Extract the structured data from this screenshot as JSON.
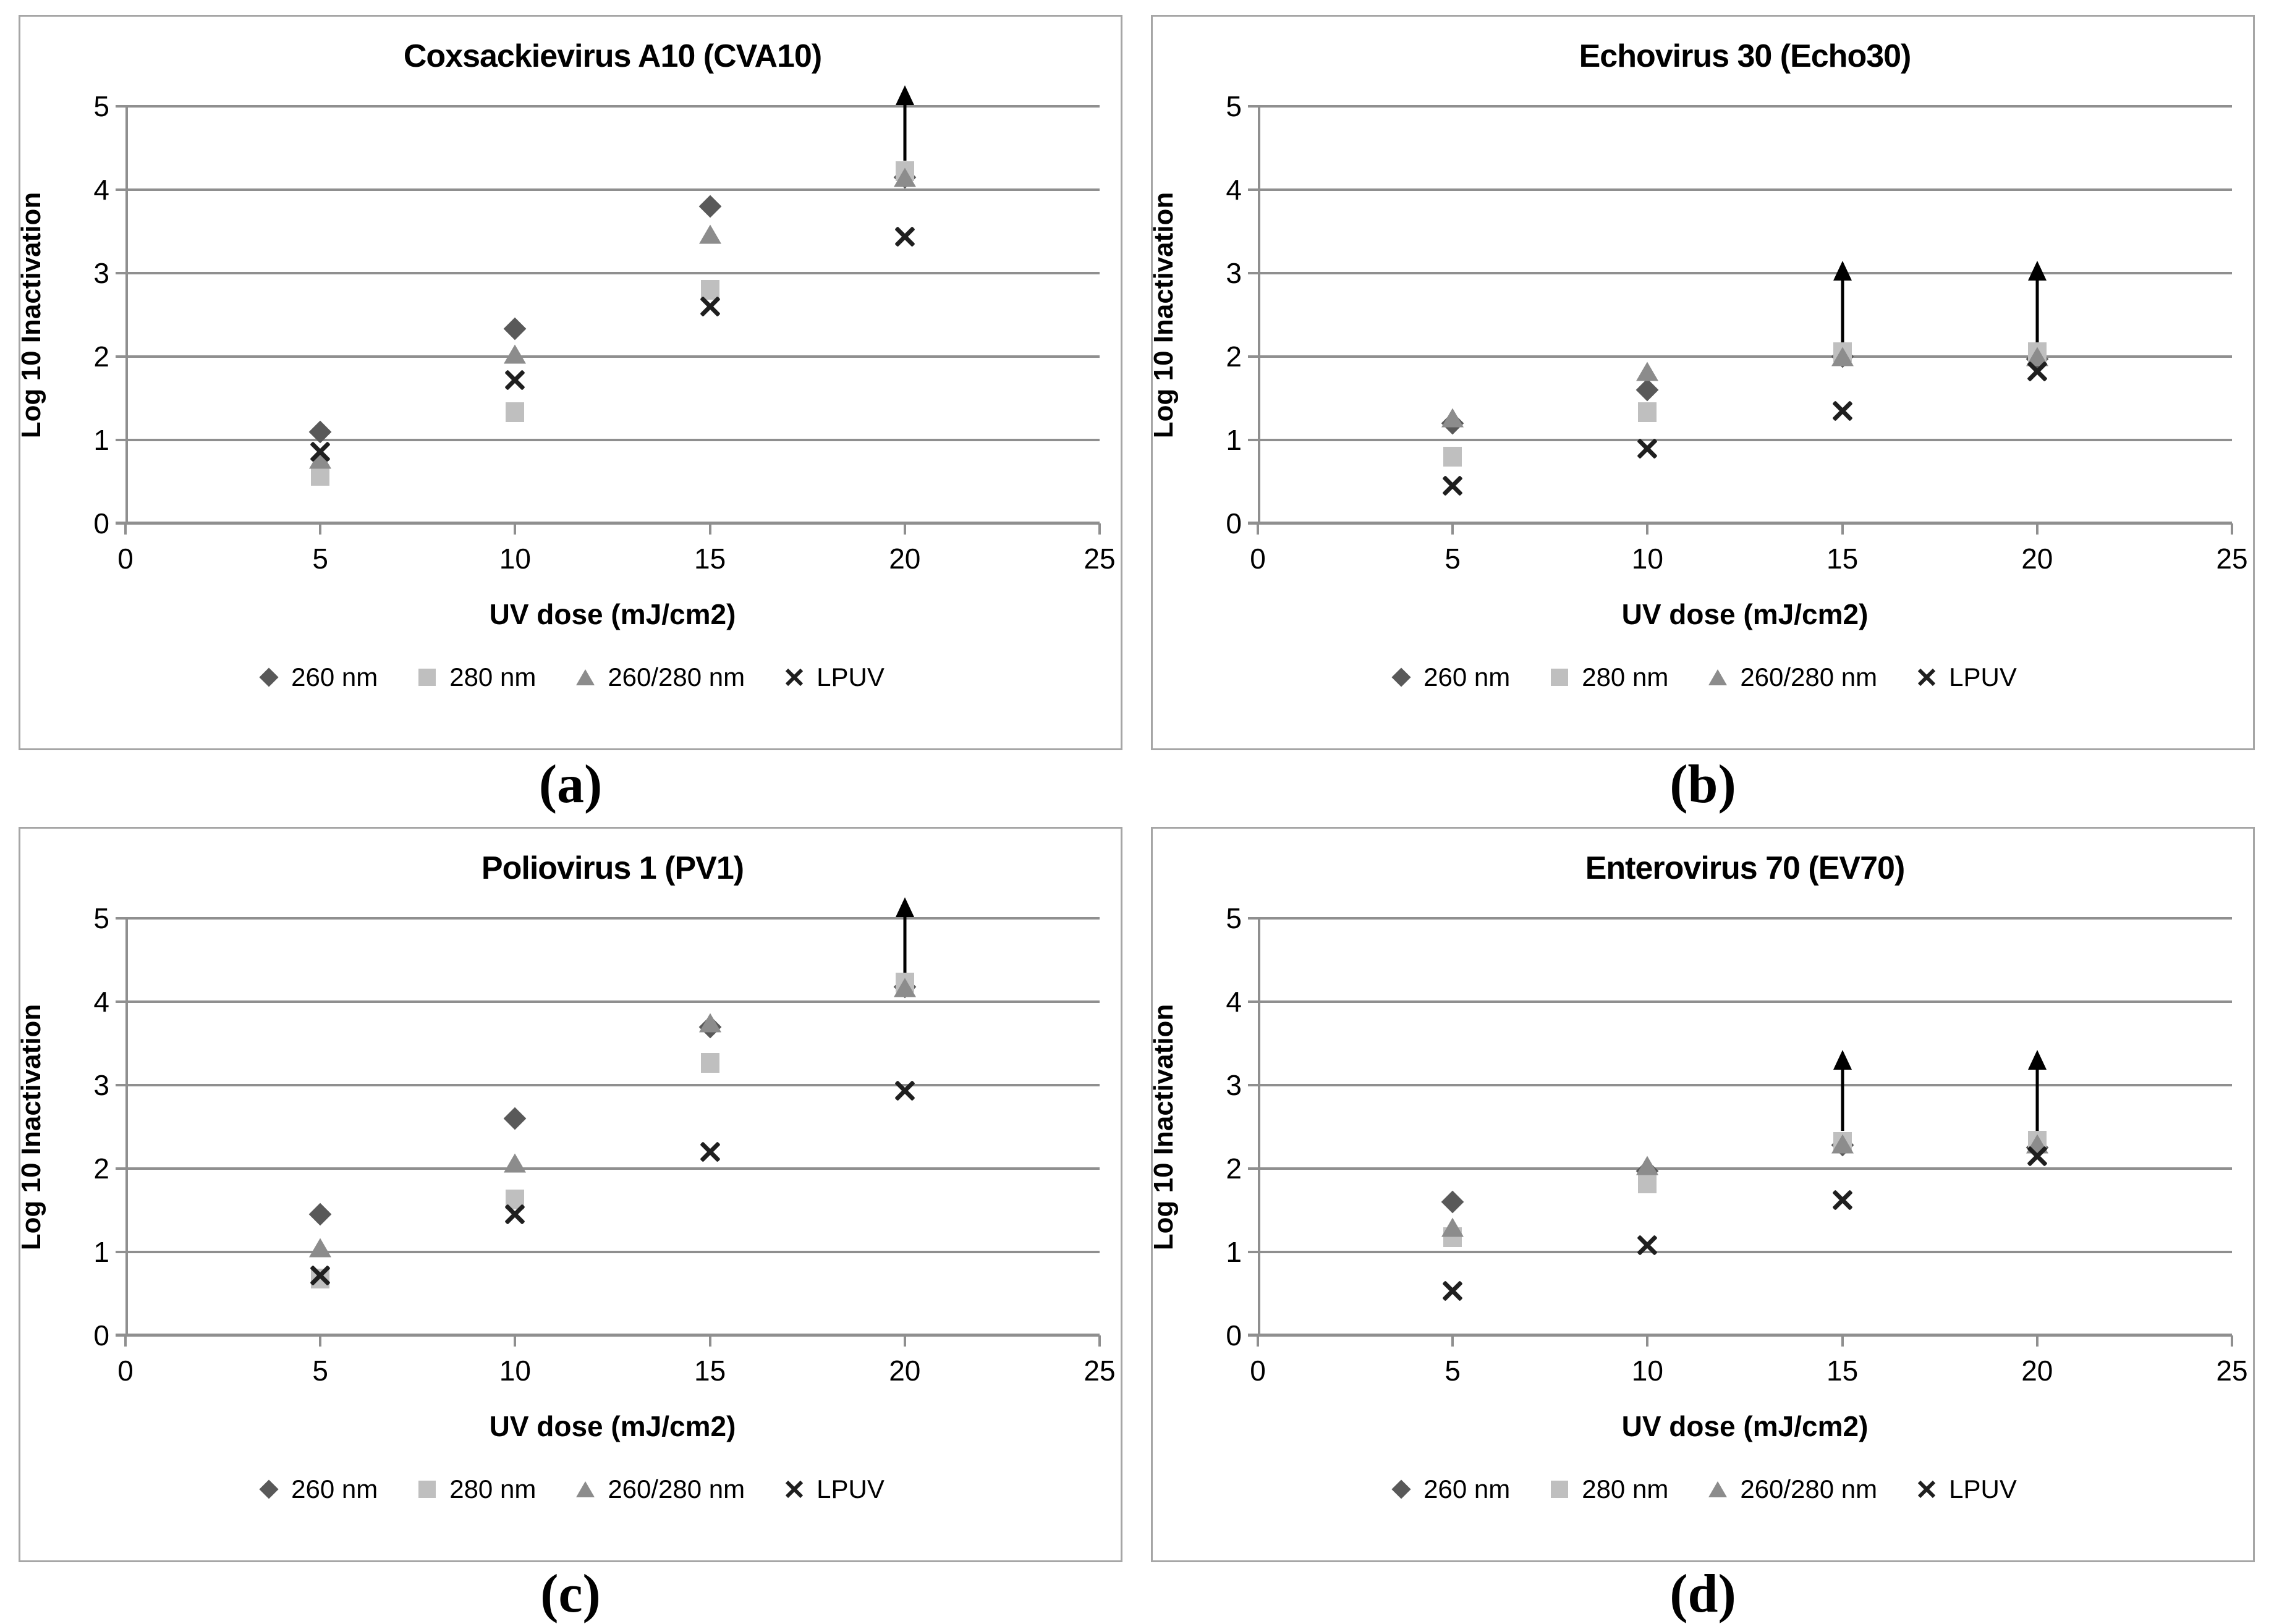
{
  "captions": [
    "(a)",
    "(b)",
    "(c)",
    "(d)"
  ],
  "marker_colors": {
    "260 nm": "#595959",
    "280 nm": "#bfbfbf",
    "260/280 nm": "#8c8c8c",
    "LPUV": "#1f1f1f"
  },
  "style": {
    "gridline_color": "#8f8f8f",
    "panel_border_color": "#a6a6a6",
    "arrow_color": "#000000"
  },
  "chart_data": [
    {
      "type": "scatter",
      "title": "Coxsackievirus A10 (CVA10)",
      "xlabel": "UV dose (mJ/cm2)",
      "ylabel": "Log 10 Inactivation",
      "xlim": [
        0,
        25
      ],
      "ylim": [
        0,
        5
      ],
      "xticks": [
        0,
        5,
        10,
        15,
        20,
        25
      ],
      "yticks": [
        0,
        1,
        2,
        3,
        4,
        5
      ],
      "grid": true,
      "legend_position": "bottom",
      "series": [
        {
          "name": "260 nm",
          "marker": "diamond",
          "color": "#595959",
          "points": [
            [
              5,
              1.1
            ],
            [
              10,
              2.33
            ],
            [
              15,
              3.8
            ],
            [
              20,
              4.15
            ]
          ]
        },
        {
          "name": "280 nm",
          "marker": "square",
          "color": "#bfbfbf",
          "points": [
            [
              5,
              0.57
            ],
            [
              10,
              1.33
            ],
            [
              15,
              2.8
            ],
            [
              20,
              4.22
            ]
          ]
        },
        {
          "name": "260/280 nm",
          "marker": "triangle",
          "color": "#8c8c8c",
          "points": [
            [
              5,
              0.77
            ],
            [
              10,
              2.03
            ],
            [
              15,
              3.47
            ],
            [
              20,
              4.15
            ]
          ]
        },
        {
          "name": "LPUV",
          "marker": "x",
          "color": "#1f1f1f",
          "points": [
            [
              5,
              0.86
            ],
            [
              10,
              1.72
            ],
            [
              15,
              2.6
            ],
            [
              20,
              3.44
            ]
          ]
        }
      ],
      "arrows": [
        {
          "x": 20,
          "from": 4.35,
          "to": 5.25
        }
      ]
    },
    {
      "type": "scatter",
      "title": "Echovirus 30 (Echo30)",
      "xlabel": "UV dose (mJ/cm2)",
      "ylabel": "Log 10 Inactivation",
      "xlim": [
        0,
        25
      ],
      "ylim": [
        0,
        5
      ],
      "xticks": [
        0,
        5,
        10,
        15,
        20,
        25
      ],
      "yticks": [
        0,
        1,
        2,
        3,
        4,
        5
      ],
      "grid": true,
      "legend_position": "bottom",
      "series": [
        {
          "name": "260 nm",
          "marker": "diamond",
          "color": "#595959",
          "points": [
            [
              5,
              1.2
            ],
            [
              10,
              1.6
            ],
            [
              15,
              2.0
            ],
            [
              20,
              1.97
            ]
          ]
        },
        {
          "name": "280 nm",
          "marker": "square",
          "color": "#bfbfbf",
          "points": [
            [
              5,
              0.8
            ],
            [
              10,
              1.33
            ],
            [
              15,
              2.05
            ],
            [
              20,
              2.05
            ]
          ]
        },
        {
          "name": "260/280 nm",
          "marker": "triangle",
          "color": "#8c8c8c",
          "points": [
            [
              5,
              1.27
            ],
            [
              10,
              1.82
            ],
            [
              15,
              2.0
            ],
            [
              20,
              2.0
            ]
          ]
        },
        {
          "name": "LPUV",
          "marker": "x",
          "color": "#1f1f1f",
          "points": [
            [
              5,
              0.45
            ],
            [
              10,
              0.9
            ],
            [
              15,
              1.35
            ],
            [
              20,
              1.82
            ]
          ]
        }
      ],
      "arrows": [
        {
          "x": 15,
          "from": 2.12,
          "to": 3.15
        },
        {
          "x": 20,
          "from": 2.12,
          "to": 3.15
        }
      ]
    },
    {
      "type": "scatter",
      "title": "Poliovirus 1 (PV1)",
      "xlabel": "UV dose (mJ/cm2)",
      "ylabel": "Log 10 Inactivation",
      "xlim": [
        0,
        25
      ],
      "ylim": [
        0,
        5
      ],
      "xticks": [
        0,
        5,
        10,
        15,
        20,
        25
      ],
      "yticks": [
        0,
        1,
        2,
        3,
        4,
        5
      ],
      "grid": true,
      "legend_position": "bottom",
      "series": [
        {
          "name": "260 nm",
          "marker": "diamond",
          "color": "#595959",
          "points": [
            [
              5,
              1.45
            ],
            [
              10,
              2.6
            ],
            [
              15,
              3.7
            ],
            [
              20,
              4.18
            ]
          ]
        },
        {
          "name": "280 nm",
          "marker": "square",
          "color": "#bfbfbf",
          "points": [
            [
              5,
              0.68
            ],
            [
              10,
              1.63
            ],
            [
              15,
              3.27
            ],
            [
              20,
              4.23
            ]
          ]
        },
        {
          "name": "260/280 nm",
          "marker": "triangle",
          "color": "#8c8c8c",
          "points": [
            [
              5,
              1.05
            ],
            [
              10,
              2.07
            ],
            [
              15,
              3.75
            ],
            [
              20,
              4.17
            ]
          ]
        },
        {
          "name": "LPUV",
          "marker": "x",
          "color": "#1f1f1f",
          "points": [
            [
              5,
              0.72
            ],
            [
              10,
              1.45
            ],
            [
              15,
              2.2
            ],
            [
              20,
              2.93
            ]
          ]
        }
      ],
      "arrows": [
        {
          "x": 20,
          "from": 4.35,
          "to": 5.25
        }
      ]
    },
    {
      "type": "scatter",
      "title": "Enterovirus 70 (EV70)",
      "xlabel": "UV dose (mJ/cm2)",
      "ylabel": "Log 10 Inactivation",
      "xlim": [
        0,
        25
      ],
      "ylim": [
        0,
        5
      ],
      "xticks": [
        0,
        5,
        10,
        15,
        20,
        25
      ],
      "yticks": [
        0,
        1,
        2,
        3,
        4,
        5
      ],
      "grid": true,
      "legend_position": "bottom",
      "series": [
        {
          "name": "260 nm",
          "marker": "diamond",
          "color": "#595959",
          "points": [
            [
              5,
              1.6
            ],
            [
              10,
              1.97
            ],
            [
              15,
              2.28
            ],
            [
              20,
              2.25
            ]
          ]
        },
        {
          "name": "280 nm",
          "marker": "square",
          "color": "#bfbfbf",
          "points": [
            [
              5,
              1.18
            ],
            [
              10,
              1.82
            ],
            [
              15,
              2.32
            ],
            [
              20,
              2.33
            ]
          ]
        },
        {
          "name": "260/280 nm",
          "marker": "triangle",
          "color": "#8c8c8c",
          "points": [
            [
              5,
              1.3
            ],
            [
              10,
              2.04
            ],
            [
              15,
              2.3
            ],
            [
              20,
              2.3
            ]
          ]
        },
        {
          "name": "LPUV",
          "marker": "x",
          "color": "#1f1f1f",
          "points": [
            [
              5,
              0.53
            ],
            [
              10,
              1.08
            ],
            [
              15,
              1.62
            ],
            [
              20,
              2.15
            ]
          ]
        }
      ],
      "arrows": [
        {
          "x": 15,
          "from": 2.45,
          "to": 3.42
        },
        {
          "x": 20,
          "from": 2.45,
          "to": 3.42
        }
      ]
    }
  ]
}
